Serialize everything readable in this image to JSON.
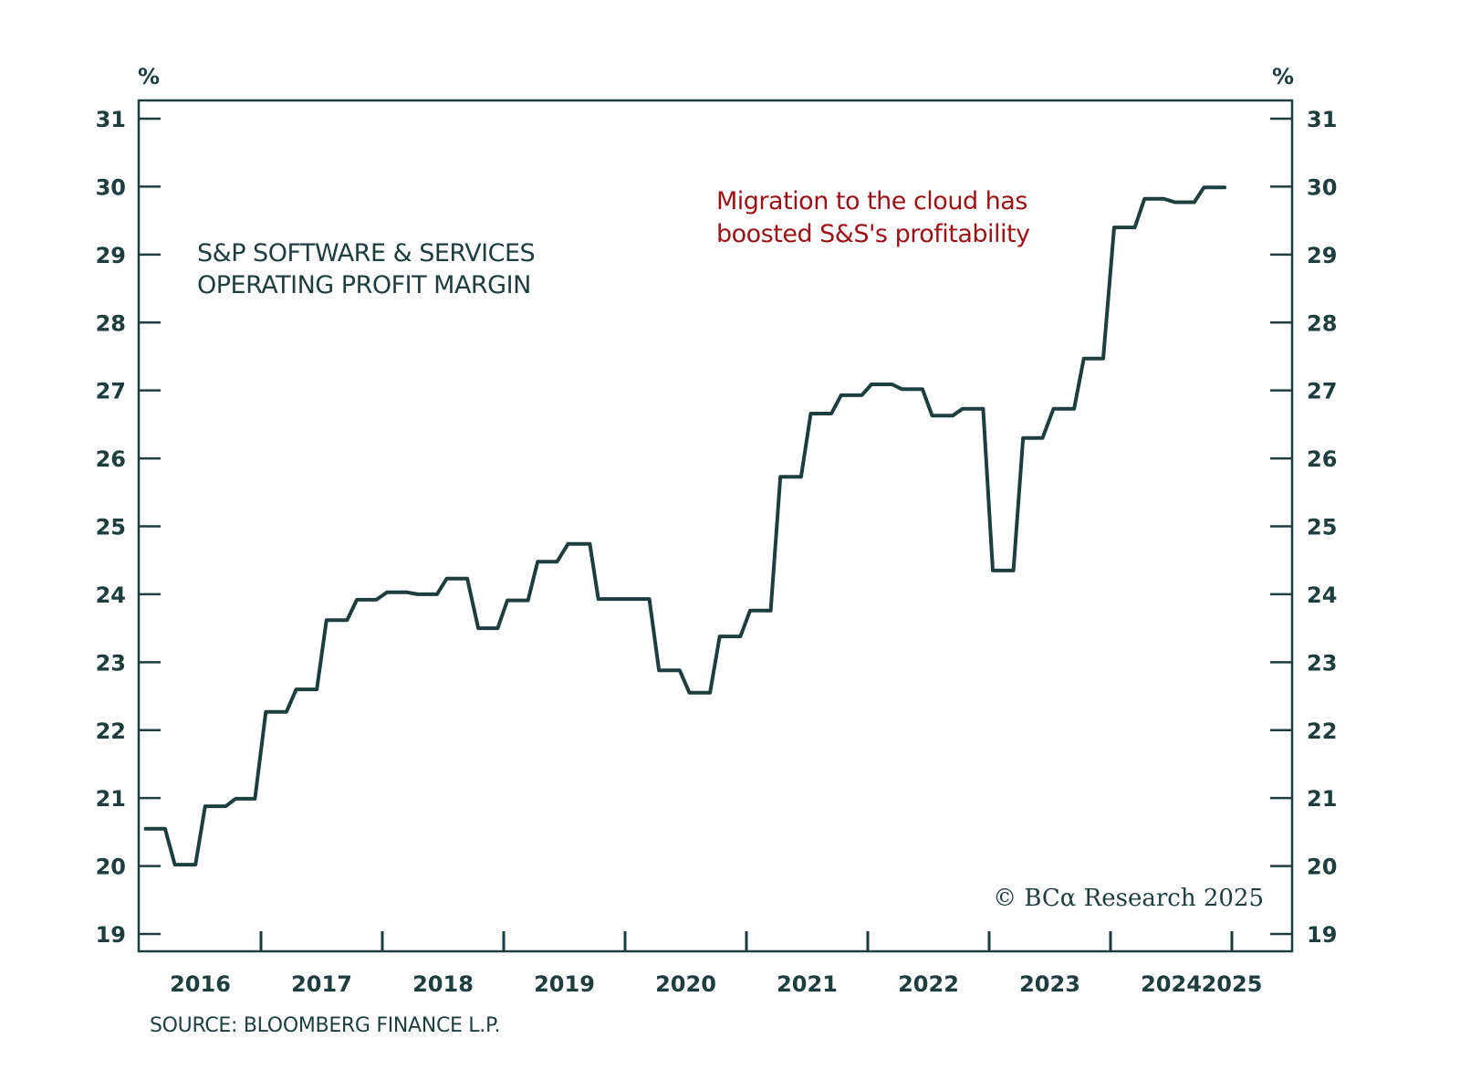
{
  "chart_data": {
    "type": "line",
    "title": "S&P SOFTWARE & SERVICES OPERATING PROFIT MARGIN",
    "title_lines": [
      "S&P SOFTWARE & SERVICES",
      "OPERATING PROFIT MARGIN"
    ],
    "annotation_lines": [
      "Migration to the cloud has",
      "boosted S&S's profitability"
    ],
    "xlabel": "",
    "ylabel_left": "%",
    "ylabel_right": "%",
    "xlim": [
      2016.0,
      2025.0
    ],
    "ylim": [
      18.75,
      31.3
    ],
    "yticks": [
      19,
      20,
      21,
      22,
      23,
      24,
      25,
      26,
      27,
      28,
      29,
      30,
      31
    ],
    "ytick_labels": [
      "19",
      "20",
      "21",
      "22",
      "23",
      "24",
      "25",
      "26",
      "27",
      "28",
      "29",
      "30",
      "31"
    ],
    "xtick_positions": [
      2017,
      2018,
      2019,
      2020,
      2021,
      2022,
      2023,
      2024,
      2025
    ],
    "xtick_labels": [
      "2016",
      "2017",
      "2018",
      "2019",
      "2020",
      "2021",
      "2022",
      "2023",
      "2024",
      "2025"
    ],
    "xtick_label_positions": [
      2016.5,
      2017.5,
      2018.5,
      2019.5,
      2020.5,
      2021.5,
      2022.5,
      2023.5,
      2024.5,
      2025.0
    ],
    "grid": false,
    "legend": "none",
    "source": "SOURCE: BLOOMBERG FINANCE L.P.",
    "copyright": "© BCα Research 2025",
    "series": [
      {
        "name": "S&P Software & Services Operating Profit Margin",
        "color": "#1e3d3f",
        "x": [
          2016.05,
          2016.21,
          2016.29,
          2016.46,
          2016.54,
          2016.71,
          2016.79,
          2016.95,
          2017.04,
          2017.21,
          2017.29,
          2017.46,
          2017.54,
          2017.71,
          2017.79,
          2017.95,
          2018.04,
          2018.2,
          2018.29,
          2018.45,
          2018.53,
          2018.7,
          2018.79,
          2018.95,
          2019.03,
          2019.2,
          2019.28,
          2019.44,
          2019.53,
          2019.71,
          2019.78,
          2020.2,
          2020.28,
          2020.45,
          2020.53,
          2020.7,
          2020.78,
          2020.95,
          2021.03,
          2021.2,
          2021.28,
          2021.45,
          2021.53,
          2021.7,
          2021.78,
          2021.95,
          2022.03,
          2022.2,
          2022.28,
          2022.45,
          2022.53,
          2022.7,
          2022.78,
          2022.95,
          2023.03,
          2023.2,
          2023.28,
          2023.44,
          2023.53,
          2023.7,
          2023.78,
          2023.94,
          2024.03,
          2024.2,
          2024.28,
          2024.44,
          2024.53,
          2024.69,
          2024.77,
          2024.94
        ],
        "y": [
          20.55,
          20.55,
          20.02,
          20.02,
          20.88,
          20.88,
          20.99,
          20.99,
          22.27,
          22.27,
          22.6,
          22.6,
          23.62,
          23.62,
          23.92,
          23.92,
          24.03,
          24.03,
          24.0,
          24.0,
          24.23,
          24.23,
          23.5,
          23.5,
          23.91,
          23.91,
          24.48,
          24.48,
          24.74,
          24.74,
          23.93,
          23.93,
          22.88,
          22.88,
          22.55,
          22.55,
          23.38,
          23.38,
          23.76,
          23.76,
          25.73,
          25.73,
          26.66,
          26.66,
          26.93,
          26.93,
          27.09,
          27.09,
          27.02,
          27.02,
          26.63,
          26.63,
          26.73,
          26.73,
          24.35,
          24.35,
          26.3,
          26.3,
          26.73,
          26.73,
          27.47,
          27.47,
          29.4,
          29.4,
          29.82,
          29.82,
          29.77,
          29.77,
          29.99,
          29.99
        ]
      }
    ]
  },
  "colors": {
    "ink": "#1e3d3f",
    "annotation": "#9b1015",
    "background": "#ffffff"
  }
}
